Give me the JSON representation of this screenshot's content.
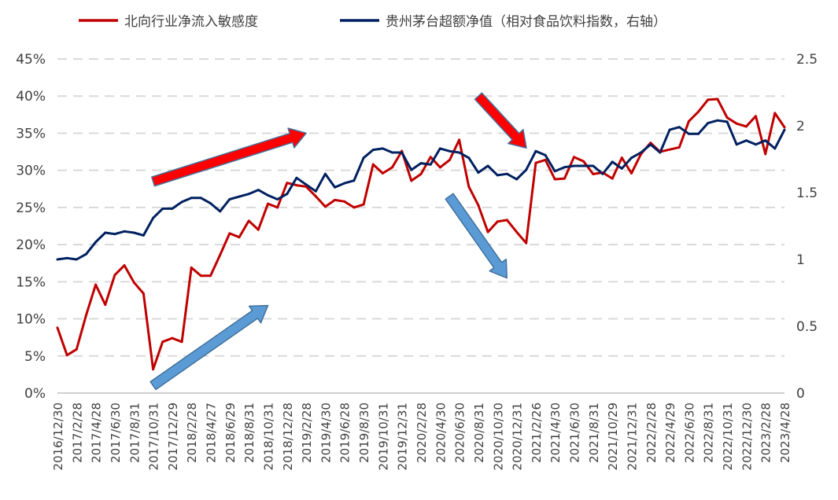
{
  "chart_data": {
    "type": "line",
    "title": "",
    "grid": true,
    "legend": {
      "placement": "top",
      "entries": [
        "北向行业净流入敏感度",
        "贵州茅台超额净值（相对食品饮料指数，右轴）"
      ]
    },
    "colors": {
      "sensitivity": "#c00000",
      "excess_nav": "#002060",
      "red_arrow": "#ff0000",
      "blue_arrow": "#5b9bd5"
    },
    "left_axis": {
      "ylim": [
        0,
        45
      ],
      "ticks": [
        "0%",
        "5%",
        "10%",
        "15%",
        "20%",
        "25%",
        "30%",
        "35%",
        "40%",
        "45%"
      ]
    },
    "right_axis": {
      "ylim": [
        0,
        2.5
      ],
      "ticks": [
        "0",
        "0.5",
        "1",
        "1.5",
        "2",
        "2.5"
      ]
    },
    "x_ticks": [
      "2016/12/30",
      "2017/2/28",
      "2017/4/28",
      "2017/6/30",
      "2017/8/31",
      "2017/10/31",
      "2017/12/29",
      "2018/2/28",
      "2018/4/27",
      "2018/6/29",
      "2018/8/31",
      "2018/10/31",
      "2018/12/28",
      "2019/2/28",
      "2019/4/30",
      "2019/6/28",
      "2019/8/30",
      "2019/10/31",
      "2019/12/31",
      "2020/2/28",
      "2020/4/30",
      "2020/6/30",
      "2020/8/31",
      "2020/10/30",
      "2020/12/31",
      "2021/2/26",
      "2021/4/30",
      "2021/6/30",
      "2021/8/31",
      "2021/10/29",
      "2021/12/31",
      "2022/2/28",
      "2022/4/29",
      "2022/6/30",
      "2022/8/31",
      "2022/10/31",
      "2022/12/30",
      "2023/2/28",
      "2023/4/28"
    ],
    "series": [
      {
        "name": "北向行业净流入敏感度",
        "axis": "left",
        "values": [
          8.8,
          5.1,
          5.9,
          10.5,
          14.6,
          11.9,
          15.9,
          17.2,
          14.9,
          13.4,
          3.2,
          6.9,
          7.4,
          6.9,
          16.9,
          15.8,
          15.8,
          18.6,
          21.5,
          21.0,
          23.2,
          22.0,
          25.5,
          25.0,
          28.3,
          28.0,
          27.8,
          26.5,
          25.1,
          26.0,
          25.8,
          25.0,
          25.4,
          30.8,
          29.6,
          30.4,
          32.6,
          28.6,
          29.5,
          31.8,
          30.4,
          31.4,
          34.1,
          27.8,
          25.3,
          21.7,
          23.1,
          23.3,
          21.7,
          20.2,
          31.0,
          31.4,
          28.8,
          28.9,
          31.8,
          31.2,
          29.5,
          29.7,
          28.9,
          31.7,
          29.6,
          32.2,
          33.7,
          32.5,
          32.8,
          33.1,
          36.6,
          37.9,
          39.5,
          39.6,
          37.1,
          36.3,
          35.9,
          37.3,
          32.2,
          37.7,
          35.8
        ]
      },
      {
        "name": "贵州茅台超额净值（相对食品饮料指数，右轴）",
        "axis": "right",
        "values": [
          1.0,
          1.01,
          1.0,
          1.04,
          1.13,
          1.2,
          1.19,
          1.21,
          1.2,
          1.18,
          1.31,
          1.38,
          1.38,
          1.43,
          1.46,
          1.46,
          1.42,
          1.36,
          1.45,
          1.47,
          1.49,
          1.52,
          1.48,
          1.45,
          1.49,
          1.61,
          1.56,
          1.51,
          1.64,
          1.54,
          1.57,
          1.59,
          1.76,
          1.82,
          1.83,
          1.8,
          1.8,
          1.67,
          1.72,
          1.71,
          1.83,
          1.81,
          1.8,
          1.76,
          1.65,
          1.7,
          1.63,
          1.64,
          1.6,
          1.67,
          1.81,
          1.78,
          1.66,
          1.69,
          1.7,
          1.7,
          1.7,
          1.64,
          1.73,
          1.68,
          1.76,
          1.8,
          1.86,
          1.8,
          1.97,
          1.99,
          1.94,
          1.94,
          2.02,
          2.04,
          2.03,
          1.86,
          1.89,
          1.86,
          1.89,
          1.83,
          1.97
        ]
      }
    ],
    "annotations": [
      {
        "type": "arrow",
        "color": "red",
        "direction": "up-right",
        "from": [
          "2017/10/31",
          28.5
        ],
        "to": [
          "2019/2/28",
          35
        ]
      },
      {
        "type": "arrow",
        "color": "red",
        "direction": "down-right",
        "from": [
          "2020/8/31",
          40
        ],
        "to": [
          "2021/1/29",
          33
        ]
      },
      {
        "type": "arrow",
        "color": "blue",
        "direction": "up-right",
        "from": [
          "2017/10/31",
          1
        ],
        "to": [
          "2018/10/31",
          11.8
        ]
      },
      {
        "type": "arrow",
        "color": "blue",
        "direction": "down-right",
        "from": [
          "2020/5/29",
          26.5
        ],
        "to": [
          "2020/11/30",
          15.5
        ]
      }
    ]
  }
}
